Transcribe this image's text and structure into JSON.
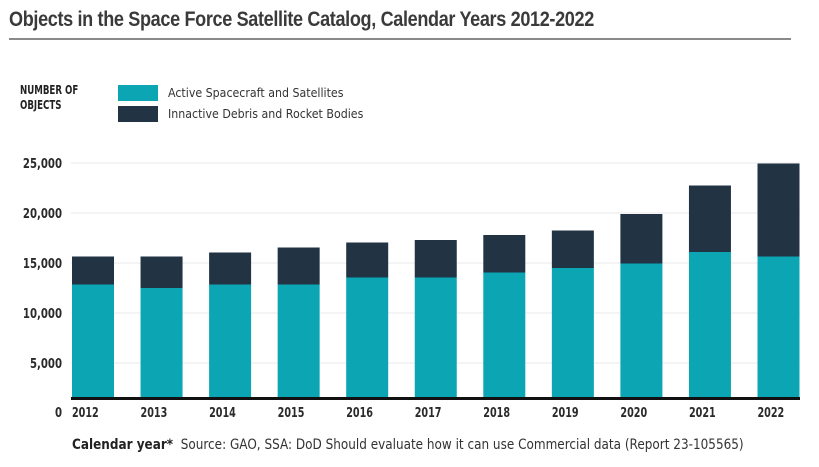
{
  "chart_data": {
    "type": "bar",
    "stacked": true,
    "title": "Objects in the Space Force Satellite Catalog, Calendar Years 2012-2022",
    "ylabel": "NUMBER OF OBJECTS",
    "xlabel": "Calendar year*",
    "ylim": [
      0,
      25000
    ],
    "yticks": [
      0,
      5000,
      10000,
      15000,
      20000,
      25000
    ],
    "ytick_labels": [
      "0",
      "5,000",
      "10,000",
      "15,000",
      "20,000",
      "25,000"
    ],
    "grid": true,
    "legend_position": "top-left",
    "categories": [
      "2012",
      "2013",
      "2014",
      "2015",
      "2016",
      "2017",
      "2018",
      "2019",
      "2020",
      "2021",
      "2022"
    ],
    "series": [
      {
        "name": "Active Spacecraft and Satellites",
        "color": "#0ba5b4",
        "values": [
          12850,
          12500,
          12850,
          12850,
          13550,
          13550,
          14050,
          14500,
          14950,
          16100,
          15650
        ]
      },
      {
        "name": "Innactive Debris and Rocket Bodies",
        "color": "#223344",
        "values": [
          2800,
          3150,
          3200,
          3700,
          3500,
          3750,
          3750,
          3750,
          4950,
          6650,
          9300
        ]
      }
    ],
    "totals": [
      15650,
      15650,
      16050,
      16550,
      17050,
      17300,
      17800,
      18250,
      19900,
      22750,
      24950
    ],
    "source": "Source: GAO, SSA: DoD Should evaluate how it can use Commercial data (Report 23-105565)"
  },
  "colors": {
    "active": "#0ba5b4",
    "inactive": "#223344",
    "baseline": "#111111",
    "grid": "#eeeeee"
  }
}
